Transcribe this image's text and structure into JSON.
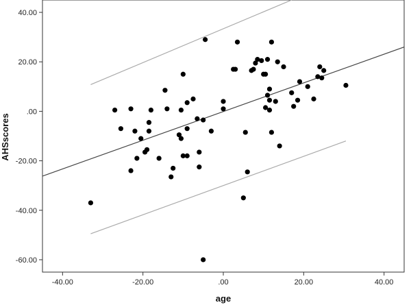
{
  "chart_data": {
    "type": "scatter",
    "title": "",
    "xlabel": "age",
    "ylabel": "AHSscores",
    "xlim": [
      -45,
      45
    ],
    "ylim": [
      -65,
      45
    ],
    "grid": false,
    "x_ticks": [
      -40,
      -20,
      0,
      20,
      40
    ],
    "x_tick_labels": [
      "-40.00",
      "-20.00",
      ".00",
      "20.00",
      "40.00"
    ],
    "y_ticks": [
      40,
      20,
      0,
      -20,
      -40,
      -60
    ],
    "y_tick_labels": [
      "40.00",
      "20.00",
      ".00",
      "-20.00",
      "-40.00",
      "-60.00"
    ],
    "points": [
      {
        "x": -33.0,
        "y": -37.0
      },
      {
        "x": -27.0,
        "y": 0.5
      },
      {
        "x": -25.5,
        "y": -7.0
      },
      {
        "x": -23.0,
        "y": 1.0
      },
      {
        "x": -23.0,
        "y": -24.0
      },
      {
        "x": -22.0,
        "y": -8.0
      },
      {
        "x": -21.5,
        "y": -19.0
      },
      {
        "x": -20.5,
        "y": -11.0
      },
      {
        "x": -19.5,
        "y": -16.5
      },
      {
        "x": -19.0,
        "y": -15.5
      },
      {
        "x": -18.5,
        "y": -8.0
      },
      {
        "x": -18.5,
        "y": -4.5
      },
      {
        "x": -18.0,
        "y": 0.5
      },
      {
        "x": -16.0,
        "y": -19.0
      },
      {
        "x": -14.5,
        "y": 8.5
      },
      {
        "x": -14.0,
        "y": 1.0
      },
      {
        "x": -13.0,
        "y": -26.5
      },
      {
        "x": -12.5,
        "y": -23.0
      },
      {
        "x": -11.0,
        "y": -9.5
      },
      {
        "x": -10.5,
        "y": 0.5
      },
      {
        "x": -10.5,
        "y": -11.0
      },
      {
        "x": -10.0,
        "y": -18.0
      },
      {
        "x": -10.0,
        "y": 15.0
      },
      {
        "x": -9.0,
        "y": 3.5
      },
      {
        "x": -9.0,
        "y": -7.0
      },
      {
        "x": -9.0,
        "y": -18.0
      },
      {
        "x": -7.5,
        "y": 5.0
      },
      {
        "x": -6.5,
        "y": -3.0
      },
      {
        "x": -6.0,
        "y": -16.5
      },
      {
        "x": -6.0,
        "y": -22.5
      },
      {
        "x": -5.0,
        "y": -3.5
      },
      {
        "x": -4.5,
        "y": 29.0
      },
      {
        "x": -5.0,
        "y": -60.0
      },
      {
        "x": -3.0,
        "y": -8.0
      },
      {
        "x": 0.0,
        "y": 1.0
      },
      {
        "x": 0.0,
        "y": 4.0
      },
      {
        "x": 2.5,
        "y": 17.0
      },
      {
        "x": 3.0,
        "y": 17.0
      },
      {
        "x": 3.5,
        "y": 28.0
      },
      {
        "x": 5.0,
        "y": -35.0
      },
      {
        "x": 5.5,
        "y": -8.5
      },
      {
        "x": 6.0,
        "y": -24.5
      },
      {
        "x": 7.0,
        "y": 16.5
      },
      {
        "x": 7.5,
        "y": 17.0
      },
      {
        "x": 8.0,
        "y": 19.5
      },
      {
        "x": 8.5,
        "y": 21.0
      },
      {
        "x": 9.5,
        "y": 20.5
      },
      {
        "x": 10.0,
        "y": 15.0
      },
      {
        "x": 10.5,
        "y": 15.0
      },
      {
        "x": 10.5,
        "y": 1.5
      },
      {
        "x": 11.0,
        "y": 21.0
      },
      {
        "x": 11.0,
        "y": 6.5
      },
      {
        "x": 11.5,
        "y": 9.0
      },
      {
        "x": 11.5,
        "y": 0.5
      },
      {
        "x": 11.5,
        "y": 4.5
      },
      {
        "x": 12.0,
        "y": 28.0
      },
      {
        "x": 12.0,
        "y": -8.5
      },
      {
        "x": 13.0,
        "y": 4.0
      },
      {
        "x": 13.5,
        "y": 20.0
      },
      {
        "x": 14.0,
        "y": -14.0
      },
      {
        "x": 15.0,
        "y": 18.0
      },
      {
        "x": 17.0,
        "y": 7.5
      },
      {
        "x": 17.5,
        "y": 2.0
      },
      {
        "x": 18.5,
        "y": 4.5
      },
      {
        "x": 19.0,
        "y": 12.0
      },
      {
        "x": 21.0,
        "y": 10.0
      },
      {
        "x": 22.5,
        "y": 5.0
      },
      {
        "x": 23.5,
        "y": 14.0
      },
      {
        "x": 24.0,
        "y": 18.0
      },
      {
        "x": 24.5,
        "y": 13.5
      },
      {
        "x": 25.0,
        "y": 16.5
      },
      {
        "x": 30.5,
        "y": 10.5
      }
    ],
    "fit_line": {
      "x": [
        -45,
        45
      ],
      "y": [
        -26.2,
        26.0
      ]
    },
    "upper_bound": {
      "x": [
        -33,
        17
      ],
      "y": [
        10.8,
        45.0
      ]
    },
    "lower_bound": {
      "x": [
        -33,
        30.5
      ],
      "y": [
        -49.5,
        -12.0
      ]
    },
    "colors": {
      "points": "#000000",
      "fit_line": "#444444",
      "bound_lines": "#aaaaaa",
      "axes": "#333333",
      "background": "#ffffff"
    }
  }
}
